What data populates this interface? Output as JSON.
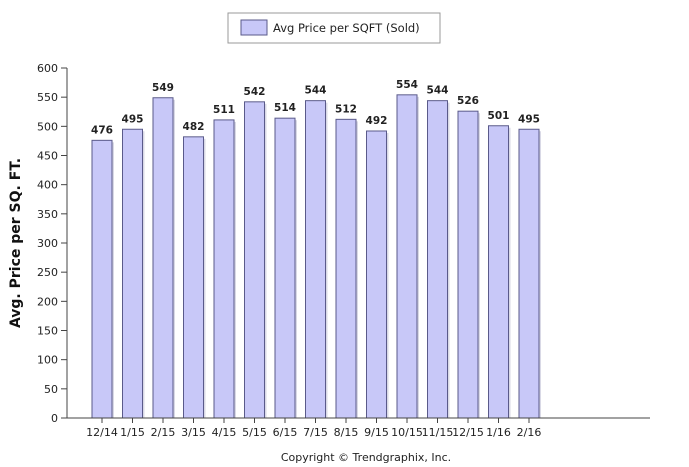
{
  "chart_data": {
    "type": "bar",
    "categories": [
      "12/14",
      "1/15",
      "2/15",
      "3/15",
      "4/15",
      "5/15",
      "6/15",
      "7/15",
      "8/15",
      "9/15",
      "10/15",
      "11/15",
      "12/15",
      "1/16",
      "2/16"
    ],
    "series": [
      {
        "name": "Avg Price per SQFT (Sold)",
        "values": [
          476,
          495,
          549,
          482,
          511,
          542,
          514,
          544,
          512,
          492,
          554,
          544,
          526,
          501,
          495
        ]
      }
    ],
    "title": "",
    "xlabel": "",
    "ylabel": "Avg. Price per SQ. FT.",
    "ylim": [
      0,
      600
    ],
    "yticks": [
      0,
      50,
      100,
      150,
      200,
      250,
      300,
      350,
      400,
      450,
      500,
      550,
      600
    ],
    "grid": false,
    "legend": "top-center",
    "colors": {
      "bar_fill": "#c8c8f8",
      "bar_stroke": "#5a5a8a"
    }
  },
  "footer": {
    "copyright": "Copyright © Trendgraphix, Inc."
  }
}
